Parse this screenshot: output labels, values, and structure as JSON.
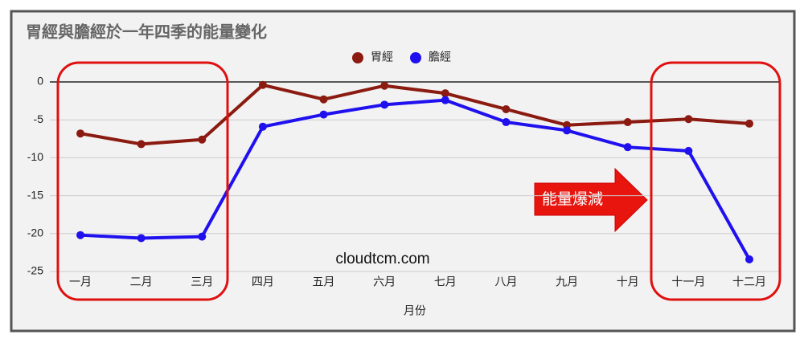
{
  "chart_data": {
    "type": "line",
    "title": "胃經與膽經於一年四季的能量變化",
    "x_label": "月份",
    "categories": [
      "一月",
      "二月",
      "三月",
      "四月",
      "五月",
      "六月",
      "七月",
      "八月",
      "九月",
      "十月",
      "十一月",
      "十二月"
    ],
    "series": [
      {
        "name": "胃經",
        "color": "#8b1a10",
        "values": [
          -6.8,
          -8.2,
          -7.6,
          -0.4,
          -2.3,
          -0.5,
          -1.5,
          -3.6,
          -5.7,
          -5.3,
          -4.9,
          -5.5
        ]
      },
      {
        "name": "膽經",
        "color": "#1f10ee",
        "values": [
          -20.2,
          -20.6,
          -20.4,
          -5.9,
          -4.3,
          -3.0,
          -2.4,
          -5.3,
          -6.4,
          -8.6,
          -9.1,
          -23.4
        ]
      }
    ],
    "ylim": [
      -25,
      0
    ],
    "yticks": [
      0,
      -5,
      -10,
      -15,
      -20,
      -25
    ],
    "grid": true,
    "legend": "top",
    "callout": "能量爆減",
    "watermark": "cloudtcm.com"
  }
}
